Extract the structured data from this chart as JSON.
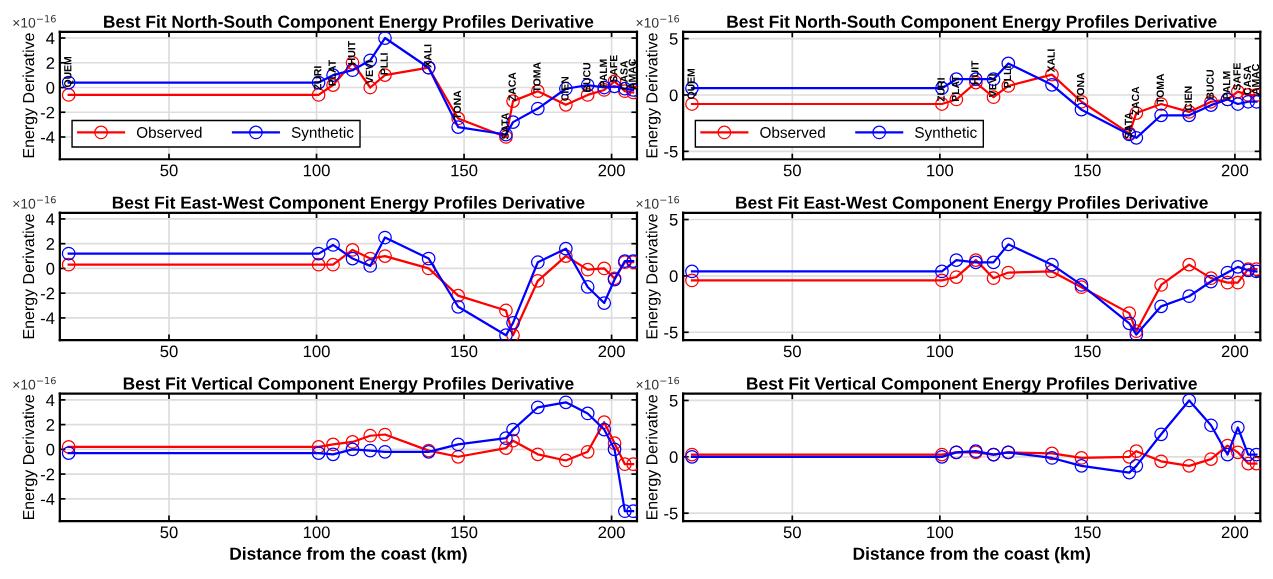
{
  "chart_data": [
    {
      "type": "line",
      "title": "Best Fit North-South Component Energy Profiles Derivative",
      "ylabel": "Energy Derivative",
      "x": [
        16,
        100.7,
        105.6,
        112.2,
        118.2,
        123.2,
        138,
        148,
        164.2,
        166.6,
        175,
        184.5,
        191.9,
        197.5,
        201,
        204.5,
        207.3
      ],
      "xlim": [
        13,
        208.6
      ],
      "xticks": [
        50,
        100,
        150,
        200
      ],
      "ylim": [
        -5.8,
        4.5
      ],
      "yticks": [
        -4,
        -2,
        0,
        2,
        4
      ],
      "grid": true,
      "marker": "circle",
      "legend": "bottom left",
      "series": [
        {
          "name": "Observed",
          "color": "#ff0000",
          "values": [
            -0.6,
            -0.6,
            0.2,
            2.0,
            0,
            1.0,
            1.6,
            -2.5,
            -4.0,
            -1.1,
            -0.3,
            -1.4,
            -0.6,
            -0.2,
            0.5,
            -0.3,
            -0.4
          ]
        },
        {
          "name": "Synthetic",
          "color": "#0000ff",
          "values": [
            0.4,
            0.4,
            1.0,
            1.4,
            2.2,
            4.0,
            1.6,
            -3.2,
            -3.8,
            -2.8,
            -1.7,
            -0.1,
            0.2,
            0,
            0.1,
            -0.1,
            -0.2
          ]
        }
      ],
      "annotations": [
        "×10$^{−16}$",
        {
          "text": "QUEM",
          "x": 16,
          "y": 0
        },
        {
          "text": "ZURI",
          "x": 100.7,
          "y": -0.2
        },
        {
          "text": "PLAT",
          "x": 105.6,
          "y": 0.1
        },
        {
          "text": "HUIT",
          "x": 112.2,
          "y": 1.8
        },
        {
          "text": "VEVI",
          "x": 118.2,
          "y": 0.3
        },
        {
          "text": "PLLI",
          "x": 123.2,
          "y": 1.0
        },
        {
          "text": "XALI",
          "x": 138,
          "y": 1.6
        },
        {
          "text": "TONA",
          "x": 148,
          "y": -2.6
        },
        {
          "text": "SATA",
          "x": 164.2,
          "y": -4.2
        },
        {
          "text": "ZACA",
          "x": 166.6,
          "y": -1.1
        },
        {
          "text": "TOMA",
          "x": 175,
          "y": -0.4
        },
        {
          "text": "CIEN",
          "x": 184.5,
          "y": -1.1
        },
        {
          "text": "BUCU",
          "x": 191.9,
          "y": -0.4
        },
        {
          "text": "PALM",
          "x": 197.5,
          "y": 0
        },
        {
          "text": "SAFE",
          "x": 201,
          "y": 0.4
        },
        {
          "text": "CASA",
          "x": 204.5,
          "y": -0.2
        },
        {
          "text": "AMAC",
          "x": 207.3,
          "y": -0.2
        }
      ]
    },
    {
      "type": "line",
      "title": "Best Fit North-South Component Energy Profiles Derivative",
      "ylabel": "Energy Derivative",
      "x": [
        16,
        100.7,
        105.6,
        112.2,
        118.2,
        123.2,
        138,
        148,
        164.2,
        166.6,
        175,
        184.5,
        191.9,
        197.5,
        201,
        204.5,
        207.3
      ],
      "xlim": [
        13,
        208.6
      ],
      "xticks": [
        50,
        100,
        150,
        200
      ],
      "ylim": [
        -5.7,
        5.6
      ],
      "yticks": [
        -5,
        0,
        5
      ],
      "grid": true,
      "marker": "circle",
      "legend": "bottom left",
      "series": [
        {
          "name": "Observed",
          "color": "#ff0000",
          "values": [
            -0.8,
            -0.8,
            -0.4,
            1.1,
            -0.2,
            0.8,
            1.8,
            -0.6,
            -3.4,
            -1.6,
            -0.8,
            -1.5,
            -0.6,
            -0.4,
            0.3,
            0,
            0
          ]
        },
        {
          "name": "Synthetic",
          "color": "#0000ff",
          "values": [
            0.6,
            0.6,
            1.4,
            1.4,
            1.4,
            2.8,
            0.9,
            -1.3,
            -3.5,
            -3.8,
            -1.8,
            -1.8,
            -0.9,
            -0.4,
            -0.8,
            -0.6,
            -0.6
          ]
        }
      ],
      "annotations": [
        "×10$^{−16}$",
        {
          "text": "QUEM",
          "x": 16,
          "y": -0.4
        },
        {
          "text": "ZURI",
          "x": 100.7,
          "y": -0.6
        },
        {
          "text": "PLAT",
          "x": 105.6,
          "y": -0.6
        },
        {
          "text": "HUIT",
          "x": 112.2,
          "y": 0.9
        },
        {
          "text": "VEVI",
          "x": 118.2,
          "y": -0.2
        },
        {
          "text": "PLLI",
          "x": 123.2,
          "y": 0.6
        },
        {
          "text": "XALI",
          "x": 138,
          "y": 2.0
        },
        {
          "text": "TONA",
          "x": 148,
          "y": -0.6
        },
        {
          "text": "SATA",
          "x": 164.2,
          "y": -3.9
        },
        {
          "text": "ZACA",
          "x": 166.6,
          "y": -1.8
        },
        {
          "text": "TOMA",
          "x": 175,
          "y": -0.8
        },
        {
          "text": "CIEN",
          "x": 184.5,
          "y": -1.4
        },
        {
          "text": "BUCU",
          "x": 191.9,
          "y": -0.4
        },
        {
          "text": "PALM",
          "x": 197.5,
          "y": -0.4
        },
        {
          "text": "SAFE",
          "x": 201,
          "y": 0.4
        },
        {
          "text": "CASA",
          "x": 204.5,
          "y": 0
        },
        {
          "text": "AMAC",
          "x": 207.3,
          "y": 0
        }
      ]
    },
    {
      "type": "line",
      "title": "Best Fit East-West Component Energy Profiles Derivative",
      "ylabel": "Energy Derivative",
      "x": [
        16,
        100.7,
        105.6,
        112.2,
        118.2,
        123.2,
        138,
        148,
        164.2,
        166.6,
        175,
        184.5,
        191.9,
        197.5,
        201,
        204.5,
        207.3
      ],
      "xlim": [
        13,
        208.6
      ],
      "xticks": [
        50,
        100,
        150,
        200
      ],
      "ylim": [
        -5.8,
        4.5
      ],
      "yticks": [
        -4,
        -2,
        0,
        2,
        4
      ],
      "grid": true,
      "marker": "circle",
      "series": [
        {
          "color": "#ff0000",
          "values": [
            0.3,
            0.3,
            0.3,
            1.5,
            0.8,
            1.0,
            0,
            -2.2,
            -3.4,
            -5.4,
            -1.0,
            1.0,
            -0.1,
            0,
            -0.8,
            0.5,
            0.5
          ]
        },
        {
          "color": "#0000ff",
          "values": [
            1.2,
            1.2,
            1.9,
            0.8,
            0.2,
            2.5,
            0.8,
            -3.1,
            -5.4,
            -4.4,
            0.5,
            1.6,
            -1.5,
            -2.8,
            -0.9,
            0.6,
            0.6
          ]
        }
      ],
      "annotations": [
        "×10$^{−16}$"
      ]
    },
    {
      "type": "line",
      "title": "Best Fit East-West Component Energy Profiles Derivative",
      "ylabel": "Energy Derivative",
      "x": [
        16,
        100.7,
        105.6,
        112.2,
        118.2,
        123.2,
        138,
        148,
        164.2,
        166.6,
        175,
        184.5,
        191.9,
        197.5,
        201,
        204.5,
        207.3
      ],
      "xlim": [
        13,
        208.6
      ],
      "xticks": [
        50,
        100,
        150,
        200
      ],
      "ylim": [
        -5.7,
        5.6
      ],
      "yticks": [
        -5,
        0,
        5
      ],
      "grid": true,
      "marker": "circle",
      "series": [
        {
          "color": "#ff0000",
          "values": [
            -0.4,
            -0.4,
            -0.1,
            1.4,
            -0.2,
            0.3,
            0.4,
            -1.0,
            -3.3,
            -4.9,
            -0.8,
            1.0,
            -0.2,
            -0.6,
            -0.6,
            0.6,
            0.6
          ]
        },
        {
          "color": "#0000ff",
          "values": [
            0.4,
            0.4,
            1.4,
            1.2,
            1.2,
            2.8,
            1.0,
            -0.8,
            -4.2,
            -5.2,
            -2.7,
            -1.8,
            -0.5,
            0.3,
            0.8,
            0.5,
            0.4
          ]
        }
      ],
      "annotations": [
        "×10$^{−16}$"
      ]
    },
    {
      "type": "line",
      "title": "Best Fit Vertical Component Energy Profiles Derivative",
      "ylabel": "Energy Derivative",
      "xlabel": "Distance from the coast (km)",
      "x": [
        16,
        100.7,
        105.6,
        112.2,
        118.2,
        123.2,
        138,
        148,
        164.2,
        166.6,
        175,
        184.5,
        191.9,
        197.5,
        201,
        204.5,
        207.3
      ],
      "xlim": [
        13,
        208.6
      ],
      "xticks": [
        50,
        100,
        150,
        200
      ],
      "ylim": [
        -5.8,
        4.5
      ],
      "yticks": [
        -4,
        -2,
        0,
        2,
        4
      ],
      "grid": true,
      "marker": "circle",
      "series": [
        {
          "color": "#ff0000",
          "values": [
            0.2,
            0.2,
            0.4,
            0.6,
            1.1,
            1.2,
            -0.1,
            -0.6,
            0.1,
            0.7,
            -0.4,
            -0.9,
            -0.2,
            2.2,
            0.5,
            -1.2,
            -1.2
          ]
        },
        {
          "color": "#0000ff",
          "values": [
            -0.3,
            -0.3,
            -0.4,
            0,
            -0.1,
            -0.2,
            -0.2,
            0.4,
            0.9,
            1.6,
            3.4,
            3.8,
            2.9,
            1.6,
            0,
            -5.0,
            -5.0
          ]
        }
      ],
      "annotations": [
        "×10$^{−16}$"
      ]
    },
    {
      "type": "line",
      "title": "Best Fit Vertical Component Energy Profiles Derivative",
      "ylabel": "Energy Derivative",
      "xlabel": "Distance from the coast (km)",
      "x": [
        16,
        100.7,
        105.6,
        112.2,
        118.2,
        123.2,
        138,
        148,
        164.2,
        166.6,
        175,
        184.5,
        191.9,
        197.5,
        201,
        204.5,
        207.3
      ],
      "xlim": [
        13,
        208.6
      ],
      "xticks": [
        50,
        100,
        150,
        200
      ],
      "ylim": [
        -5.7,
        5.6
      ],
      "yticks": [
        -5,
        0,
        5
      ],
      "grid": true,
      "marker": "circle",
      "series": [
        {
          "color": "#ff0000",
          "values": [
            0.2,
            0.2,
            0.4,
            0.4,
            0.2,
            0.4,
            0.3,
            -0.1,
            0,
            0.5,
            -0.4,
            -0.8,
            -0.2,
            1.0,
            0.4,
            -0.6,
            -0.6
          ]
        },
        {
          "color": "#0000ff",
          "values": [
            0,
            0,
            0.4,
            0.5,
            0.2,
            0.4,
            -0.1,
            -0.8,
            -1.4,
            -0.8,
            2.0,
            5.0,
            2.8,
            0.2,
            2.6,
            0.2,
            0.2
          ]
        }
      ],
      "annotations": [
        "×10$^{−16}$"
      ]
    }
  ]
}
